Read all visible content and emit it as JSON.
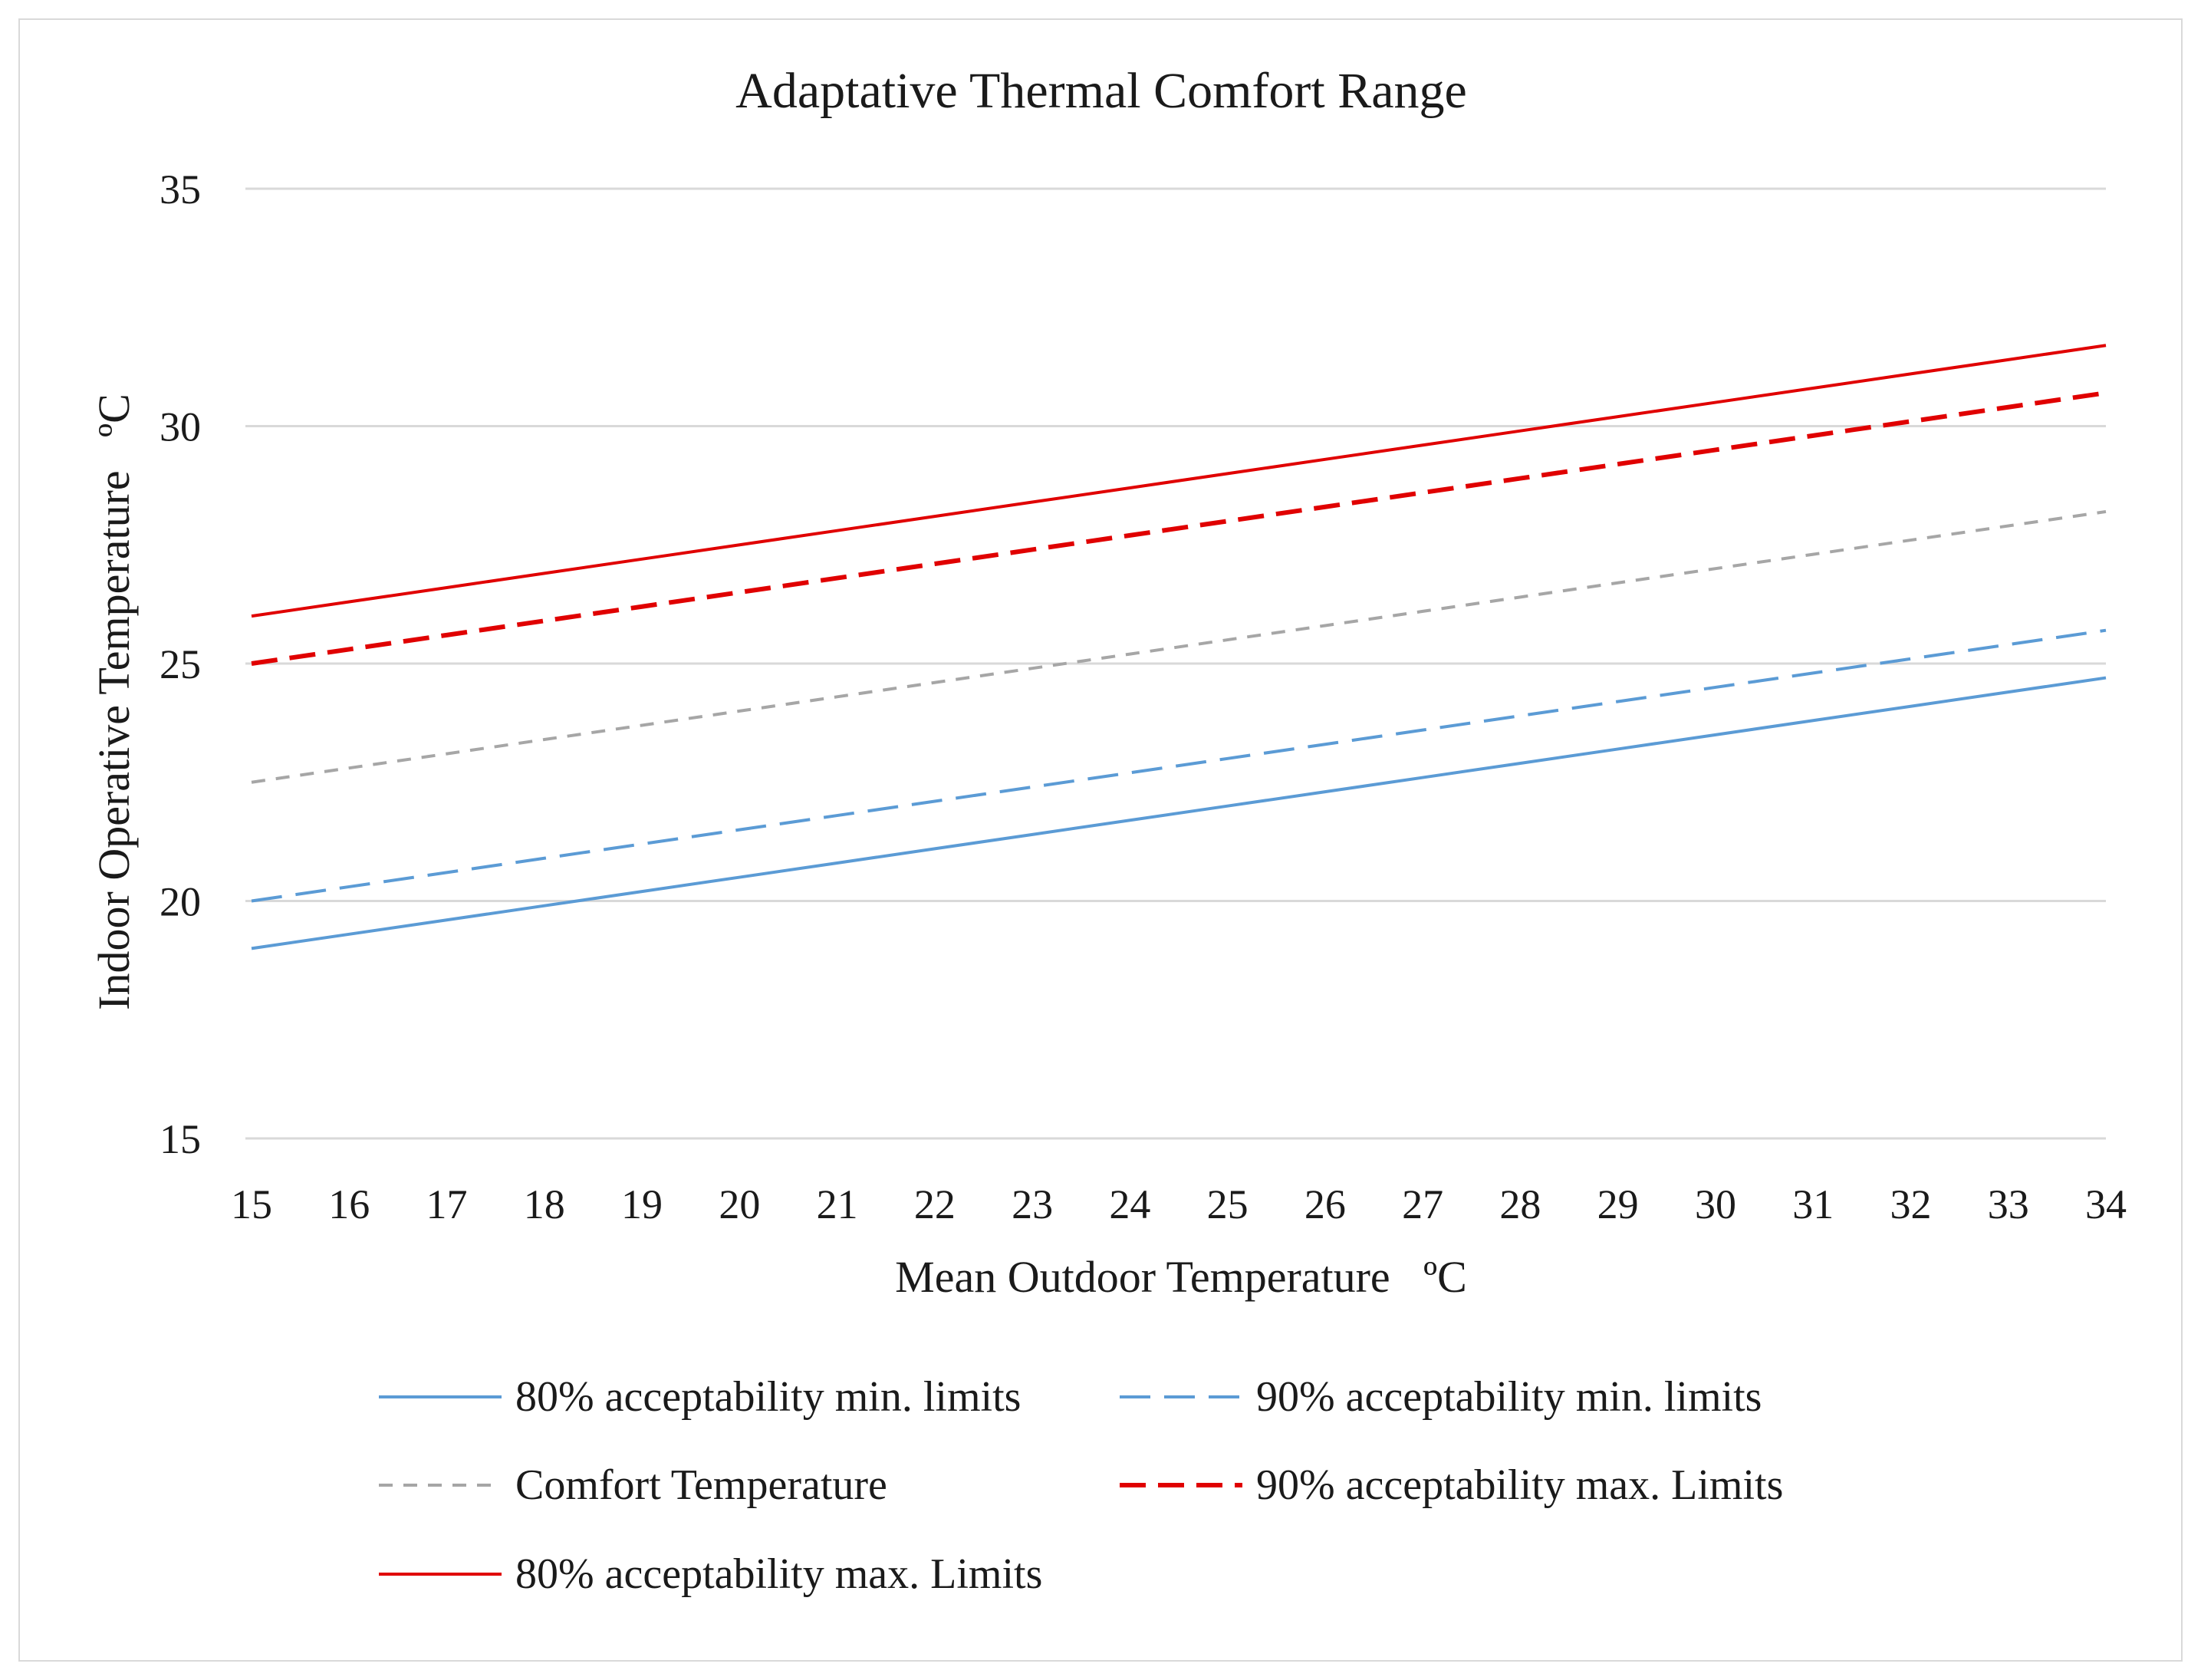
{
  "chart_data": {
    "type": "line",
    "title": "Adaptative Thermal Comfort Range",
    "xlabel": "Mean Outdoor Temperature   ºC",
    "ylabel": "Indoor Operative Temperature   ºC",
    "xlim": [
      15,
      34
    ],
    "ylim": [
      15,
      35
    ],
    "yticks": [
      15,
      20,
      25,
      30,
      35
    ],
    "x": [
      15,
      16,
      17,
      18,
      19,
      20,
      21,
      22,
      23,
      24,
      25,
      26,
      27,
      28,
      29,
      30,
      31,
      32,
      33,
      34
    ],
    "grid": true,
    "legend_position": "bottom",
    "series": [
      {
        "name": "80% acceptability min. limits",
        "color": "#5b9bd5",
        "style": "solid",
        "width": "thin",
        "values": [
          19.0,
          19.3,
          19.6,
          19.9,
          20.2,
          20.5,
          20.8,
          21.1,
          21.4,
          21.7,
          22.0,
          22.3,
          22.6,
          22.9,
          23.2,
          23.5,
          23.8,
          24.1,
          24.4,
          24.7
        ]
      },
      {
        "name": "90% acceptability min. limits",
        "color": "#5b9bd5",
        "style": "longdash",
        "width": "thin",
        "values": [
          20.0,
          20.3,
          20.6,
          20.9,
          21.2,
          21.5,
          21.8,
          22.1,
          22.4,
          22.7,
          23.0,
          23.3,
          23.6,
          23.9,
          24.2,
          24.5,
          24.8,
          25.1,
          25.4,
          25.7
        ]
      },
      {
        "name": "Comfort Temperature",
        "color": "#a6a6a6",
        "style": "shortdash",
        "width": "thin",
        "values": [
          22.5,
          22.8,
          23.1,
          23.4,
          23.7,
          24.0,
          24.3,
          24.6,
          24.9,
          25.2,
          25.5,
          25.8,
          26.1,
          26.4,
          26.7,
          27.0,
          27.3,
          27.6,
          27.9,
          28.2
        ]
      },
      {
        "name": "90% acceptability max. Limits",
        "color": "#e00000",
        "style": "longdash",
        "width": "thick",
        "values": [
          25.0,
          25.3,
          25.6,
          25.9,
          26.2,
          26.5,
          26.8,
          27.1,
          27.4,
          27.7,
          28.0,
          28.3,
          28.6,
          28.9,
          29.2,
          29.5,
          29.8,
          30.1,
          30.4,
          30.7
        ]
      },
      {
        "name": "80% acceptability max. Limits",
        "color": "#e00000",
        "style": "solid",
        "width": "thin",
        "values": [
          26.0,
          26.3,
          26.6,
          26.9,
          27.2,
          27.5,
          27.8,
          28.1,
          28.4,
          28.7,
          29.0,
          29.3,
          29.6,
          29.9,
          30.2,
          30.5,
          30.8,
          31.1,
          31.4,
          31.7
        ]
      }
    ]
  }
}
